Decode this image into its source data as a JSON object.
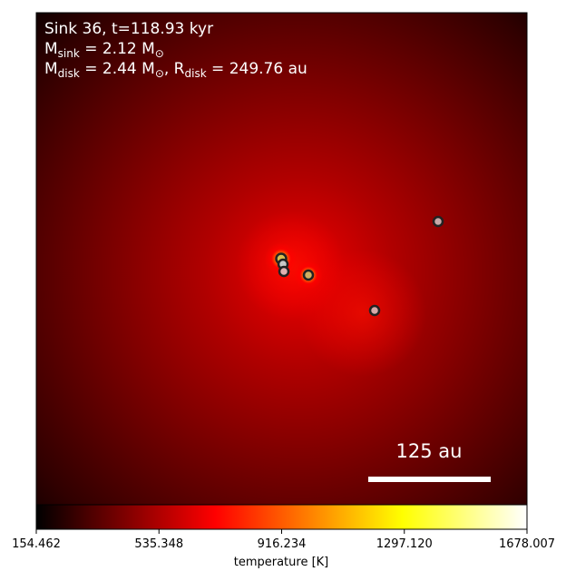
{
  "chart_data": {
    "type": "heatmap",
    "header": {
      "line1": "Sink 36, t=118.93 kyr",
      "line2": [
        {
          "text": "M"
        },
        {
          "sub": "sink"
        },
        {
          "text": " = 2.12 M"
        },
        {
          "sub": "⊙"
        }
      ],
      "line3": [
        {
          "text": "M"
        },
        {
          "sub": "disk"
        },
        {
          "text": " = 2.44 M"
        },
        {
          "sub": "⊙"
        },
        {
          "text": ", R"
        },
        {
          "sub": "disk"
        },
        {
          "text": " = 249.76 au"
        }
      ]
    },
    "scale_bar": "125 au",
    "colorbar": {
      "label": "temperature [K]",
      "colormap": "hot",
      "xlim": [
        154.462,
        1678.007
      ],
      "xticks": [
        154.462,
        535.348,
        916.234,
        {
          "value": 1297.12,
          "label": "1297.120"
        },
        1678.007
      ]
    }
  }
}
